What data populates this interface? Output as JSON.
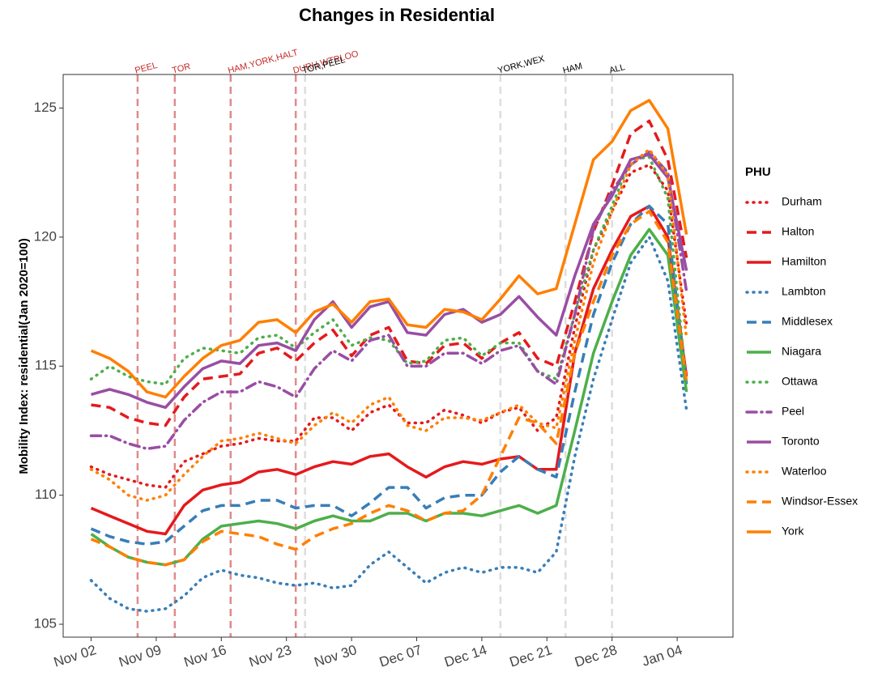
{
  "chart_data": {
    "type": "line",
    "title": "Changes in Residential",
    "y_label": "Mobility Index: residential(Jan 2020=100)",
    "legend_title": "PHU",
    "legend_position": "right",
    "grid": false,
    "x": [
      "Nov 02",
      "Nov 04",
      "Nov 06",
      "Nov 08",
      "Nov 10",
      "Nov 12",
      "Nov 14",
      "Nov 16",
      "Nov 18",
      "Nov 20",
      "Nov 22",
      "Nov 24",
      "Nov 26",
      "Nov 28",
      "Nov 30",
      "Dec 02",
      "Dec 04",
      "Dec 06",
      "Dec 08",
      "Dec 10",
      "Dec 12",
      "Dec 14",
      "Dec 16",
      "Dec 18",
      "Dec 20",
      "Dec 22",
      "Dec 24",
      "Dec 26",
      "Dec 28",
      "Dec 30",
      "Jan 01",
      "Jan 03",
      "Jan 05"
    ],
    "xlim": [
      "Oct 30",
      "Jan 10"
    ],
    "xticks": [
      "Nov 02",
      "Nov 09",
      "Nov 16",
      "Nov 23",
      "Nov 30",
      "Dec 07",
      "Dec 14",
      "Dec 21",
      "Dec 28",
      "Jan 04"
    ],
    "ylim": [
      104.5,
      126.3
    ],
    "yticks": [
      105,
      110,
      115,
      120,
      125
    ],
    "annotations": [
      {
        "x": "Nov 07",
        "text": "PEEL",
        "color": "#e08a8a",
        "text_color": "#c62828"
      },
      {
        "x": "Nov 11",
        "text": "TOR",
        "color": "#e08a8a",
        "text_color": "#c62828"
      },
      {
        "x": "Nov 17",
        "text": "HAM,YORK,HALT",
        "color": "#e08a8a",
        "text_color": "#c62828"
      },
      {
        "x": "Nov 24",
        "text": "DURH,WTRLOO",
        "color": "#e08a8a",
        "text_color": "#c62828"
      },
      {
        "x": "Nov 25",
        "text": "TOR,PEEL",
        "color": "#dddddd",
        "text_color": "#000000"
      },
      {
        "x": "Dec 16",
        "text": "YORK,WEX",
        "color": "#dddddd",
        "text_color": "#000000"
      },
      {
        "x": "Dec 23",
        "text": "HAM",
        "color": "#dddddd",
        "text_color": "#000000"
      },
      {
        "x": "Dec 28",
        "text": "ALL",
        "color": "#dddddd",
        "text_color": "#000000"
      }
    ],
    "series": [
      {
        "name": "Durham",
        "color": "#e41a1c",
        "linestyle": "dotted",
        "values": [
          111.1,
          110.8,
          110.6,
          110.4,
          110.3,
          111.3,
          111.6,
          111.9,
          112.0,
          112.2,
          112.1,
          112.1,
          113.0,
          113.0,
          112.5,
          113.2,
          113.5,
          112.8,
          112.8,
          113.3,
          113.1,
          112.8,
          113.2,
          113.4,
          112.5,
          113.0,
          116.5,
          119.5,
          121.0,
          122.5,
          122.8,
          121.8,
          116.6
        ]
      },
      {
        "name": "Halton",
        "color": "#e41a1c",
        "linestyle": "dashed",
        "values": [
          113.5,
          113.4,
          113.0,
          112.8,
          112.7,
          113.8,
          114.5,
          114.6,
          114.7,
          115.5,
          115.7,
          115.2,
          115.9,
          116.4,
          115.4,
          116.2,
          116.5,
          115.2,
          115.1,
          115.8,
          115.9,
          115.3,
          115.9,
          116.3,
          115.3,
          115.0,
          117.5,
          120.2,
          122.0,
          124.0,
          124.5,
          123.0,
          119.2
        ]
      },
      {
        "name": "Hamilton",
        "color": "#e41a1c",
        "linestyle": "solid",
        "values": [
          109.5,
          109.2,
          108.9,
          108.6,
          108.5,
          109.6,
          110.2,
          110.4,
          110.5,
          110.9,
          111.0,
          110.8,
          111.1,
          111.3,
          111.2,
          111.5,
          111.6,
          111.1,
          110.7,
          111.1,
          111.3,
          111.2,
          111.4,
          111.5,
          111.0,
          111.0,
          115.5,
          118.0,
          119.5,
          120.8,
          121.2,
          120.0,
          114.6
        ]
      },
      {
        "name": "Lambton",
        "color": "#377eb8",
        "linestyle": "dotted",
        "values": [
          106.7,
          106.0,
          105.6,
          105.5,
          105.6,
          106.1,
          106.8,
          107.1,
          106.9,
          106.8,
          106.6,
          106.5,
          106.6,
          106.4,
          106.5,
          107.3,
          107.8,
          107.2,
          106.6,
          107.0,
          107.2,
          107.0,
          107.2,
          107.2,
          107.0,
          107.8,
          111.5,
          114.5,
          116.8,
          119.0,
          120.0,
          118.3,
          113.3
        ]
      },
      {
        "name": "Middlesex",
        "color": "#377eb8",
        "linestyle": "dashed",
        "values": [
          108.7,
          108.4,
          108.2,
          108.1,
          108.2,
          108.8,
          109.4,
          109.6,
          109.6,
          109.8,
          109.8,
          109.5,
          109.6,
          109.6,
          109.2,
          109.7,
          110.3,
          110.3,
          109.5,
          109.9,
          110.0,
          110.0,
          110.9,
          111.5,
          111.0,
          110.7,
          114.0,
          117.0,
          119.0,
          120.5,
          121.2,
          120.5,
          114.3
        ]
      },
      {
        "name": "Niagara",
        "color": "#4daf4a",
        "linestyle": "solid",
        "values": [
          108.5,
          108.0,
          107.6,
          107.4,
          107.3,
          107.5,
          108.3,
          108.8,
          108.9,
          109.0,
          108.9,
          108.7,
          109.0,
          109.2,
          109.0,
          109.0,
          109.3,
          109.3,
          109.0,
          109.3,
          109.3,
          109.2,
          109.4,
          109.6,
          109.3,
          109.6,
          112.5,
          115.5,
          117.5,
          119.3,
          120.3,
          119.3,
          114.0
        ]
      },
      {
        "name": "Ottawa",
        "color": "#4daf4a",
        "linestyle": "dotted",
        "values": [
          114.5,
          115.0,
          114.6,
          114.4,
          114.3,
          115.3,
          115.7,
          115.6,
          115.5,
          116.1,
          116.2,
          115.7,
          116.3,
          116.8,
          115.8,
          116.1,
          116.0,
          115.1,
          115.2,
          116.0,
          116.1,
          115.4,
          115.9,
          115.9,
          114.8,
          114.5,
          117.0,
          119.5,
          121.2,
          123.0,
          123.1,
          121.5,
          114.3
        ]
      },
      {
        "name": "Peel",
        "color": "#984ea3",
        "linestyle": "dotdash",
        "values": [
          112.3,
          112.3,
          112.0,
          111.8,
          111.9,
          112.9,
          113.6,
          114.0,
          114.0,
          114.4,
          114.2,
          113.8,
          114.9,
          115.6,
          115.2,
          116.0,
          116.2,
          115.0,
          115.0,
          115.5,
          115.5,
          115.1,
          115.6,
          115.8,
          114.8,
          114.3,
          117.0,
          120.3,
          121.8,
          122.8,
          123.3,
          122.5,
          117.9
        ]
      },
      {
        "name": "Toronto",
        "color": "#984ea3",
        "linestyle": "solid",
        "values": [
          113.9,
          114.1,
          113.9,
          113.6,
          113.4,
          114.2,
          114.9,
          115.2,
          115.1,
          115.8,
          115.9,
          115.6,
          116.8,
          117.5,
          116.5,
          117.3,
          117.5,
          116.3,
          116.2,
          117.0,
          117.2,
          116.7,
          117.0,
          117.7,
          116.9,
          116.2,
          118.5,
          120.5,
          121.6,
          123.0,
          123.2,
          122.3,
          118.7
        ]
      },
      {
        "name": "Waterloo",
        "color": "#ff7f00",
        "linestyle": "dotted",
        "values": [
          111.0,
          110.6,
          110.0,
          109.8,
          110.0,
          110.8,
          111.5,
          112.1,
          112.2,
          112.4,
          112.2,
          112.0,
          112.7,
          113.2,
          112.8,
          113.5,
          113.8,
          112.7,
          112.5,
          113.0,
          113.0,
          112.9,
          113.2,
          113.5,
          112.8,
          112.6,
          116.0,
          119.0,
          121.0,
          122.8,
          123.4,
          122.4,
          116.1
        ]
      },
      {
        "name": "Windsor-Essex",
        "color": "#ff7f00",
        "linestyle": "dashed",
        "values": [
          108.3,
          108.0,
          107.6,
          107.4,
          107.3,
          107.5,
          108.2,
          108.6,
          108.5,
          108.4,
          108.1,
          107.9,
          108.4,
          108.7,
          108.9,
          109.3,
          109.6,
          109.4,
          109.0,
          109.3,
          109.4,
          110.0,
          111.5,
          113.0,
          112.8,
          112.0,
          115.5,
          117.5,
          119.3,
          120.5,
          121.0,
          119.8,
          114.4
        ]
      },
      {
        "name": "York",
        "color": "#ff7f00",
        "linestyle": "solid",
        "values": [
          115.6,
          115.3,
          114.8,
          114.0,
          113.8,
          114.6,
          115.3,
          115.8,
          116.0,
          116.7,
          116.8,
          116.3,
          117.1,
          117.4,
          116.7,
          117.5,
          117.6,
          116.6,
          116.5,
          117.2,
          117.1,
          116.8,
          117.6,
          118.5,
          117.8,
          118.0,
          120.5,
          123.0,
          123.7,
          124.9,
          125.3,
          124.2,
          120.1
        ]
      }
    ]
  }
}
